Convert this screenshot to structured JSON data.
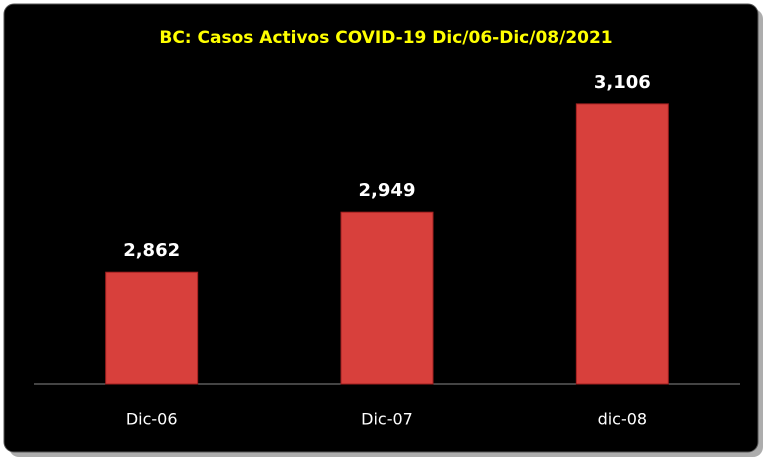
{
  "chart_data": {
    "type": "bar",
    "title": "BC: Casos  Activos COVID-19 Dic/06-Dic/08/2021",
    "categories": [
      "Dic-06",
      "Dic-07",
      "dic-08"
    ],
    "values": [
      2862,
      2949,
      3106
    ],
    "value_labels": [
      "2,862",
      "2,949",
      "3,106"
    ],
    "color": "#d8403c",
    "ylim": [
      2700,
      3200
    ]
  }
}
